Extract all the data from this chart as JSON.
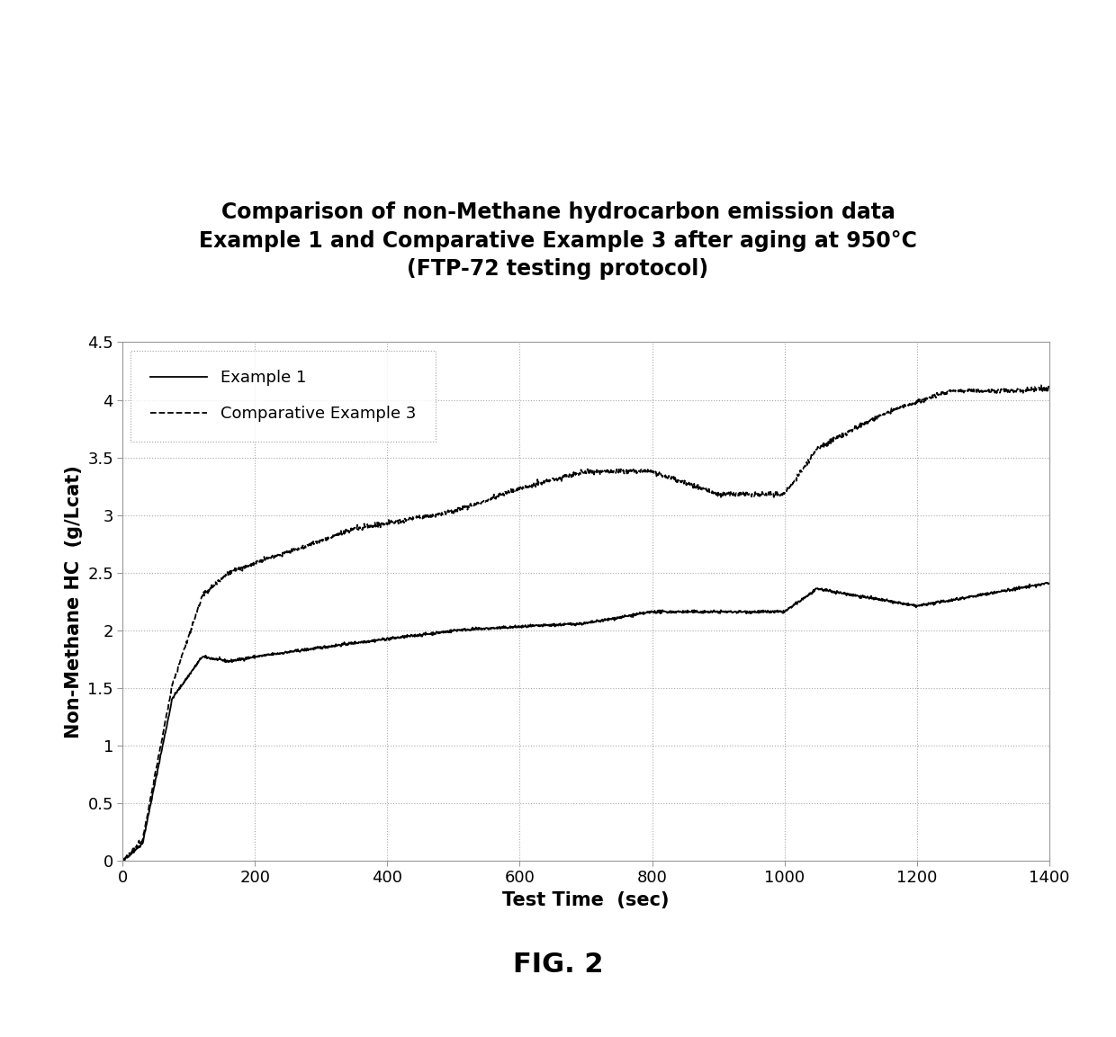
{
  "title_line1": "Comparison of non-Methane hydrocarbon emission data",
  "title_line2": "Example 1 and Comparative Example 3 after aging at 950°C",
  "title_line3": "(FTP-72 testing protocol)",
  "xlabel": "Test Time  (sec)",
  "ylabel": "Non-Methane HC  (g/Lcat)",
  "fig_caption": "FIG. 2",
  "xlim": [
    0,
    1400
  ],
  "ylim": [
    0,
    4.5
  ],
  "xticks": [
    0,
    200,
    400,
    600,
    800,
    1000,
    1200,
    1400
  ],
  "yticks": [
    0,
    0.5,
    1.0,
    1.5,
    2.0,
    2.5,
    3.0,
    3.5,
    4.0,
    4.5
  ],
  "legend_labels": [
    "Example 1",
    "Comparative Example 3"
  ],
  "line1_color": "#000000",
  "line2_color": "#000000",
  "background_color": "#ffffff",
  "title_fontsize": 17,
  "axis_label_fontsize": 15,
  "tick_fontsize": 13,
  "legend_fontsize": 13,
  "caption_fontsize": 22
}
